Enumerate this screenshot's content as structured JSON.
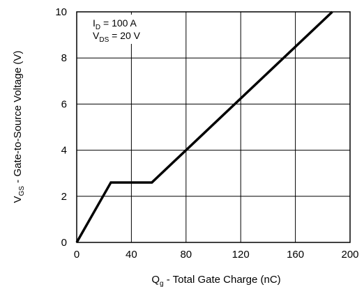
{
  "chart_data": {
    "type": "line",
    "xlabel": {
      "main": "Q",
      "sub": "g",
      "rest": " - Total Gate Charge (nC)"
    },
    "ylabel": {
      "main": "V",
      "sub": "GS",
      "rest": " - Gate-to-Source Voltage (V)"
    },
    "xlim": [
      0,
      200
    ],
    "ylim": [
      0,
      10
    ],
    "xticks": [
      "0",
      "40",
      "80",
      "120",
      "160",
      "200"
    ],
    "yticks": [
      "0",
      "2",
      "4",
      "6",
      "8",
      "10"
    ],
    "grid": true,
    "annotations": [
      {
        "main": "I",
        "sub": "D",
        "rest": " = 100 A"
      },
      {
        "main": "V",
        "sub": "DS",
        "rest": " = 20 V"
      }
    ],
    "series": [
      {
        "color": "#000000",
        "x": [
          0,
          25,
          55,
          187
        ],
        "y": [
          0,
          2.6,
          2.6,
          10
        ]
      }
    ]
  }
}
